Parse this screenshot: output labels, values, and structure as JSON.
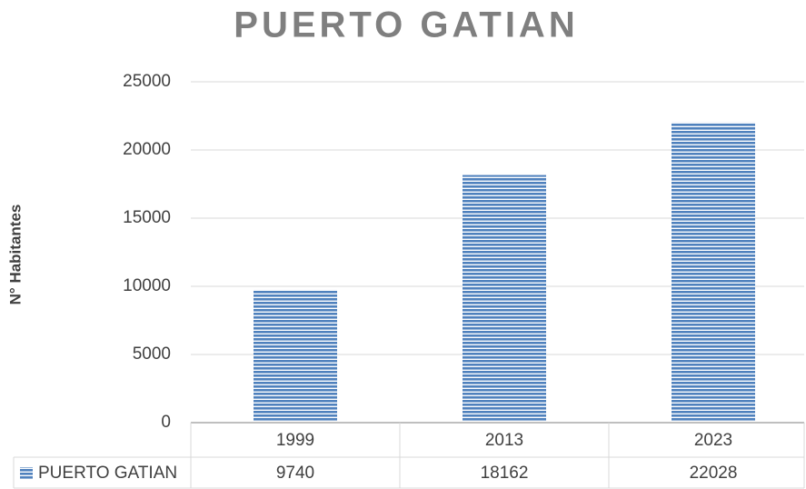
{
  "chart_data": {
    "type": "bar",
    "title": "PUERTO GATIAN",
    "y_label": "N° Habitantes",
    "categories": [
      "1999",
      "2013",
      "2023"
    ],
    "series": [
      {
        "name": "PUERTO GATIAN",
        "color": "#4f81bd",
        "values": [
          9740,
          18162,
          22028
        ]
      }
    ],
    "ylim": [
      0,
      25000
    ],
    "yticks": [
      0,
      5000,
      10000,
      15000,
      20000,
      25000
    ],
    "grid": true,
    "data_table": true
  }
}
